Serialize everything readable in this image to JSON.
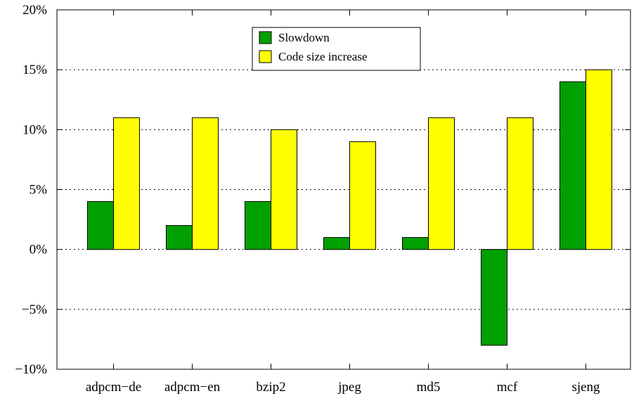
{
  "chart_data": {
    "type": "bar",
    "categories": [
      "adpcm−de",
      "adpcm−en",
      "bzip2",
      "jpeg",
      "md5",
      "mcf",
      "sjeng"
    ],
    "series": [
      {
        "name": "Slowdown",
        "values": [
          4,
          2,
          4,
          1,
          1,
          -8,
          14
        ],
        "color": "#00a000"
      },
      {
        "name": "Code size increase",
        "values": [
          11,
          11,
          10,
          9,
          11,
          11,
          15
        ],
        "color": "#ffff00"
      }
    ],
    "ylim": [
      -10,
      20
    ],
    "yticks": [
      -10,
      -5,
      0,
      5,
      10,
      15,
      20
    ],
    "ytick_labels": [
      "−10%",
      "−5%",
      "0%",
      "5%",
      "10%",
      "15%",
      "20%"
    ],
    "grid": "horizontal-dotted",
    "legend_position": "top-center",
    "title": "",
    "xlabel": "",
    "ylabel": ""
  }
}
